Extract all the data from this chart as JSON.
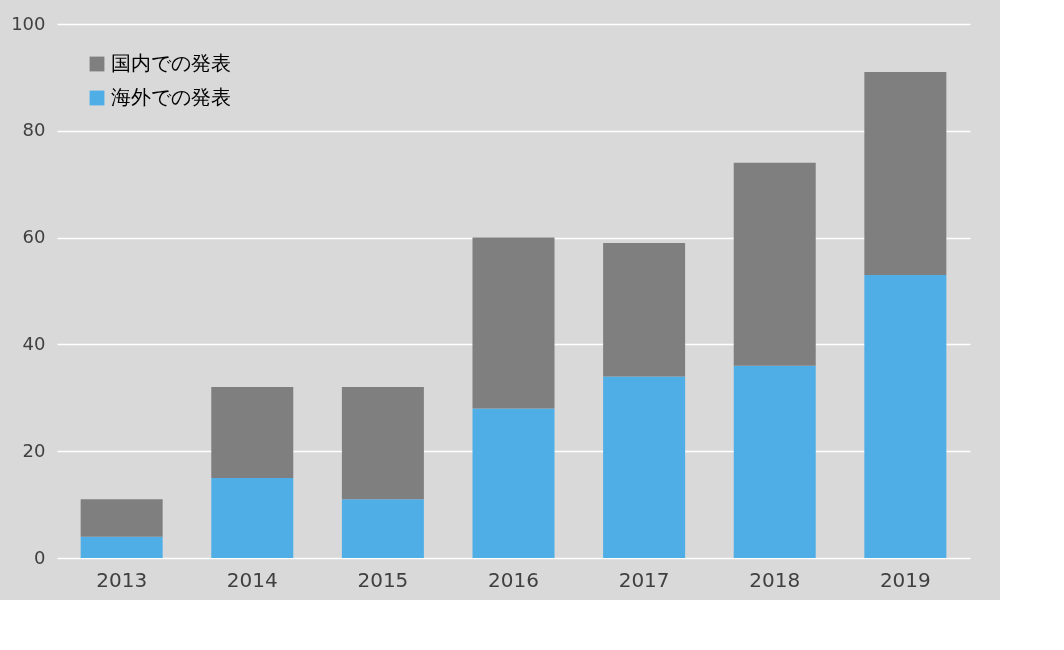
{
  "chart_data": {
    "type": "bar",
    "stacked": true,
    "categories": [
      "2013",
      "2014",
      "2015",
      "2016",
      "2017",
      "2018",
      "2019"
    ],
    "series": [
      {
        "name": "海外での発表",
        "color": "#4faee6",
        "values": [
          4,
          15,
          11,
          28,
          34,
          36,
          53
        ]
      },
      {
        "name": "国内での発表",
        "color": "#7f7f7f",
        "values": [
          7,
          17,
          21,
          32,
          25,
          38,
          38
        ]
      }
    ],
    "ylim": [
      0,
      100
    ],
    "yticks": [
      0,
      20,
      40,
      60,
      80,
      100
    ],
    "grid": "y",
    "legend": "top left"
  }
}
